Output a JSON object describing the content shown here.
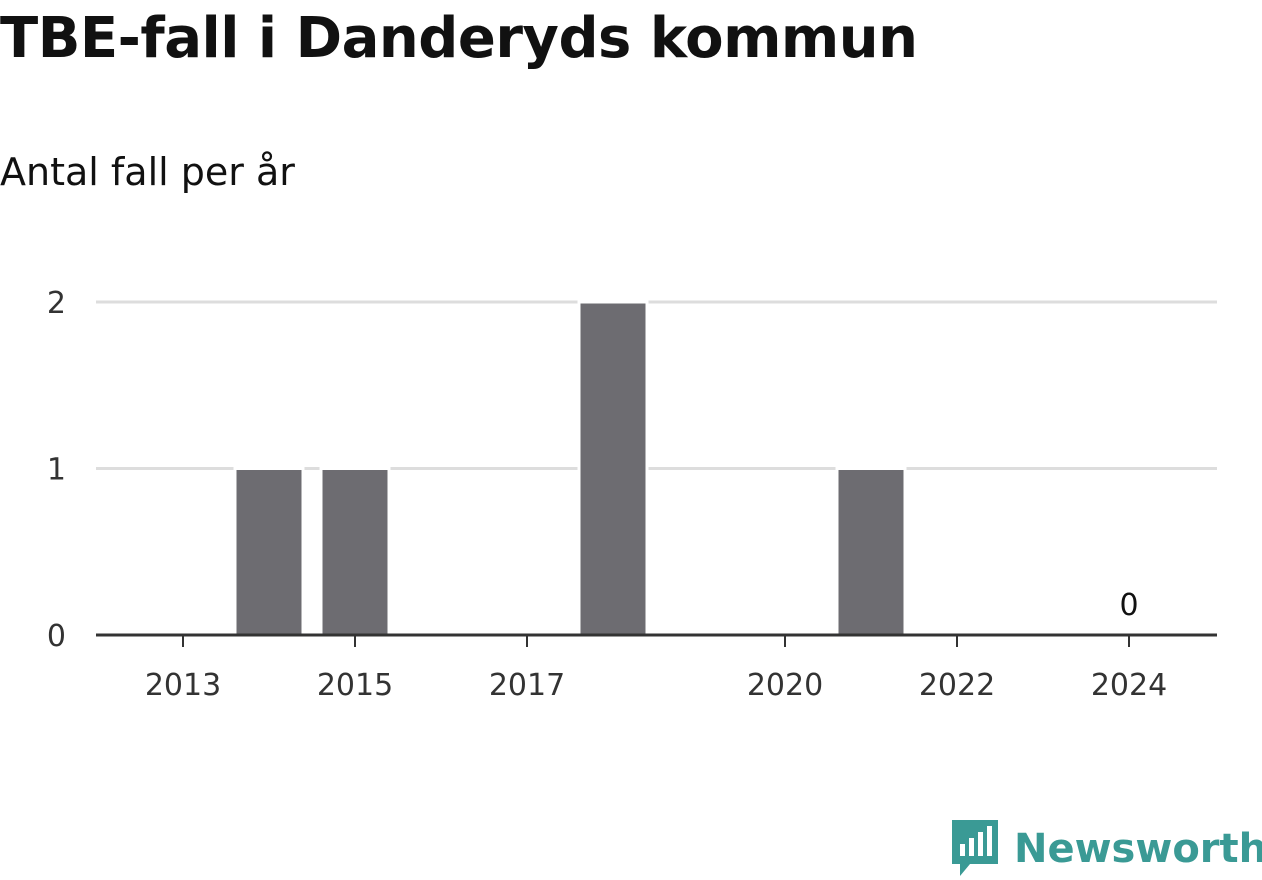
{
  "chart_data": {
    "type": "bar",
    "title": "TBE-fall i Danderyds kommun",
    "subtitle": "Antal fall per år",
    "categories": [
      2013,
      2014,
      2015,
      2016,
      2017,
      2018,
      2019,
      2020,
      2021,
      2022,
      2023,
      2024
    ],
    "values": [
      0,
      1,
      1,
      0,
      0,
      2,
      0,
      0,
      1,
      0,
      0,
      0
    ],
    "x_tick_labels": [
      "2013",
      "2015",
      "2017",
      "2020",
      "2022",
      "2024"
    ],
    "y_ticks": [
      0,
      1,
      2
    ],
    "ylim": [
      0,
      2
    ],
    "xlabel": "",
    "ylabel": "",
    "grid": true,
    "annotations": [
      {
        "x": 2024,
        "text": "0"
      }
    ],
    "colors": {
      "bar": "#6d6c71",
      "grid": "#dddddd",
      "axis": "#333333"
    }
  },
  "branding": {
    "name": "Newsworthy",
    "color": "#3a9a95",
    "icon": "newsworthy-logo-icon"
  }
}
